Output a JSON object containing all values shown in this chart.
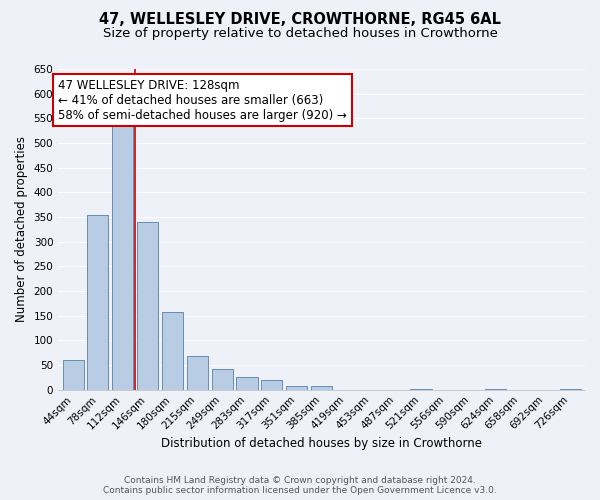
{
  "title": "47, WELLESLEY DRIVE, CROWTHORNE, RG45 6AL",
  "subtitle": "Size of property relative to detached houses in Crowthorne",
  "xlabel": "Distribution of detached houses by size in Crowthorne",
  "ylabel": "Number of detached properties",
  "bar_labels": [
    "44sqm",
    "78sqm",
    "112sqm",
    "146sqm",
    "180sqm",
    "215sqm",
    "249sqm",
    "283sqm",
    "317sqm",
    "351sqm",
    "385sqm",
    "419sqm",
    "453sqm",
    "487sqm",
    "521sqm",
    "556sqm",
    "590sqm",
    "624sqm",
    "658sqm",
    "692sqm",
    "726sqm"
  ],
  "bar_values": [
    60,
    355,
    542,
    340,
    158,
    68,
    42,
    25,
    20,
    7,
    8,
    0,
    0,
    0,
    2,
    0,
    0,
    2,
    0,
    0,
    2
  ],
  "bar_color": "#b8cce4",
  "bar_edge_color": "#5580b0",
  "annotation_text": "47 WELLESLEY DRIVE: 128sqm\n← 41% of detached houses are smaller (663)\n58% of semi-detached houses are larger (920) →",
  "annotation_box_color": "#ffffff",
  "annotation_box_edge_color": "#cc0000",
  "ylim": [
    0,
    650
  ],
  "yticks": [
    0,
    50,
    100,
    150,
    200,
    250,
    300,
    350,
    400,
    450,
    500,
    550,
    600,
    650
  ],
  "footer_line1": "Contains HM Land Registry data © Crown copyright and database right 2024.",
  "footer_line2": "Contains public sector information licensed under the Open Government Licence v3.0.",
  "bg_color": "#eef2f8",
  "plot_bg_color": "#eef2f8",
  "grid_color": "#ffffff",
  "title_fontsize": 10.5,
  "subtitle_fontsize": 9.5,
  "axis_label_fontsize": 8.5,
  "tick_fontsize": 7.5,
  "footer_fontsize": 6.5,
  "annotation_fontsize": 8.5,
  "red_line_x": 2.5
}
